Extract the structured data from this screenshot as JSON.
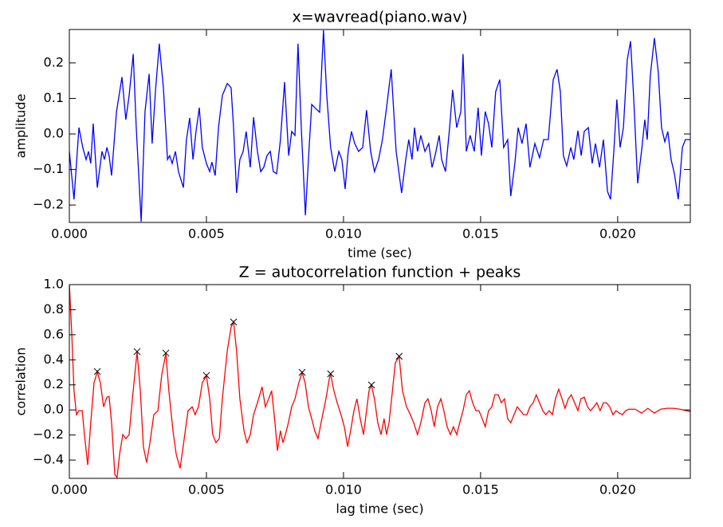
{
  "chart_data": [
    {
      "type": "line",
      "title": "x=wavread(piano.wav)",
      "x_label": "time (sec)",
      "y_label": "amplitude",
      "color": "#0000ff",
      "xlim": [
        0,
        0.02265
      ],
      "ylim": [
        -0.249,
        0.294
      ],
      "xticks": [
        {
          "value": 0,
          "label": "0.000"
        },
        {
          "value": 0.005,
          "label": "0.005"
        },
        {
          "value": 0.01,
          "label": "0.010"
        },
        {
          "value": 0.015,
          "label": "0.015"
        },
        {
          "value": 0.02,
          "label": "0.020"
        }
      ],
      "yticks": [
        {
          "value": -0.2,
          "label": "−0.2"
        },
        {
          "value": -0.1,
          "label": "−0.1"
        },
        {
          "value": 0,
          "label": "0.0"
        },
        0.1,
        0.2
      ],
      "x": [
        0,
        0.00017,
        0.00035,
        0.00049,
        0.00061,
        0.0007,
        0.00078,
        0.00087,
        0.00102,
        0.00119,
        0.00128,
        0.00137,
        0.00145,
        0.00154,
        0.00172,
        0.00192,
        0.00206,
        0.00218,
        0.00233,
        0.00244,
        0.00262,
        0.00276,
        0.00291,
        0.00302,
        0.00314,
        0.00328,
        0.00343,
        0.00358,
        0.00366,
        0.00375,
        0.00387,
        0.00398,
        0.00416,
        0.00427,
        0.00439,
        0.00451,
        0.00462,
        0.00474,
        0.00485,
        0.005,
        0.00512,
        0.0052,
        0.00532,
        0.00544,
        0.00558,
        0.00576,
        0.0059,
        0.00599,
        0.0061,
        0.00622,
        0.00634,
        0.00645,
        0.0066,
        0.00672,
        0.00686,
        0.00698,
        0.00709,
        0.00721,
        0.00733,
        0.00744,
        0.00756,
        0.0077,
        0.00785,
        0.008,
        0.00811,
        0.00823,
        0.00834,
        0.00846,
        0.00861,
        0.00872,
        0.00884,
        0.00898,
        0.00913,
        0.00927,
        0.00939,
        0.00953,
        0.00968,
        0.00983,
        0.00994,
        0.01006,
        0.01017,
        0.01029,
        0.01041,
        0.01055,
        0.0107,
        0.01084,
        0.01099,
        0.01113,
        0.01128,
        0.01142,
        0.01157,
        0.01174,
        0.01192,
        0.01212,
        0.01227,
        0.01238,
        0.0125,
        0.01259,
        0.0127,
        0.01282,
        0.01297,
        0.01311,
        0.01323,
        0.01334,
        0.01349,
        0.01358,
        0.01372,
        0.01387,
        0.01398,
        0.01413,
        0.01428,
        0.01436,
        0.01448,
        0.01462,
        0.01477,
        0.01491,
        0.01503,
        0.01517,
        0.01529,
        0.01541,
        0.01555,
        0.0157,
        0.01584,
        0.01599,
        0.0161,
        0.01625,
        0.01637,
        0.01651,
        0.01666,
        0.0168,
        0.01698,
        0.01715,
        0.0173,
        0.01747,
        0.01765,
        0.01779,
        0.01791,
        0.01802,
        0.01814,
        0.01829,
        0.0184,
        0.01855,
        0.01867,
        0.01878,
        0.01893,
        0.01907,
        0.01919,
        0.01934,
        0.01948,
        0.01963,
        0.01974,
        0.01986,
        0.01997,
        0.02009,
        0.02021,
        0.02035,
        0.02047,
        0.02058,
        0.02073,
        0.02087,
        0.02099,
        0.02108,
        0.02119,
        0.02134,
        0.02148,
        0.0216,
        0.02172,
        0.02183,
        0.02195,
        0.02207,
        0.02221,
        0.02236,
        0.02247,
        0.02265
      ],
      "values": [
        -0.049,
        -0.184,
        0.018,
        -0.038,
        -0.072,
        -0.049,
        -0.083,
        0.029,
        -0.151,
        -0.049,
        -0.072,
        -0.038,
        -0.061,
        -0.117,
        0.063,
        0.16,
        0.04,
        0.108,
        0.225,
        0.018,
        -0.247,
        0.063,
        0.169,
        -0.027,
        0.119,
        0.254,
        0.13,
        -0.072,
        -0.061,
        -0.083,
        -0.049,
        -0.106,
        -0.151,
        -0.016,
        0.045,
        -0.072,
        0.007,
        0.074,
        -0.038,
        -0.083,
        -0.106,
        -0.079,
        -0.117,
        0.018,
        0.108,
        0.142,
        0.13,
        0.018,
        -0.166,
        -0.072,
        -0.049,
        0.007,
        -0.094,
        0.047,
        -0.049,
        -0.106,
        -0.094,
        -0.061,
        -0.049,
        -0.106,
        -0.112,
        -0.016,
        0.146,
        -0.061,
        0.007,
        -0.004,
        0.254,
        0.018,
        -0.229,
        -0.072,
        0.083,
        0.072,
        0.061,
        0.292,
        0.108,
        -0.038,
        -0.106,
        -0.049,
        -0.072,
        -0.155,
        -0.049,
        0.007,
        -0.027,
        -0.049,
        -0.038,
        0.067,
        -0.049,
        -0.106,
        -0.072,
        -0.016,
        0.074,
        0.182,
        -0.049,
        -0.166,
        -0.072,
        -0.016,
        -0.072,
        0.018,
        -0.049,
        -0.004,
        -0.049,
        -0.027,
        -0.094,
        -0.061,
        -0.004,
        -0.072,
        -0.106,
        0.018,
        0.124,
        0.018,
        0.063,
        0.225,
        -0.049,
        -0.004,
        -0.049,
        0.074,
        -0.061,
        0.063,
        0.029,
        -0.038,
        0.119,
        0.153,
        -0.038,
        -0.016,
        -0.175,
        -0.083,
        0.018,
        -0.027,
        0.029,
        -0.094,
        -0.027,
        -0.067,
        -0.016,
        -0.016,
        0.153,
        0.182,
        0.119,
        -0.061,
        -0.09,
        -0.038,
        -0.072,
        0.009,
        -0.061,
        0.007,
        0.018,
        -0.083,
        -0.027,
        -0.094,
        -0.016,
        -0.162,
        -0.184,
        -0.049,
        0.097,
        -0.038,
        0.018,
        0.209,
        0.261,
        0.108,
        -0.139,
        -0.049,
        0.04,
        -0.016,
        0.164,
        0.27,
        0.175,
        0.018,
        -0.022,
        0.007,
        -0.072,
        -0.112,
        -0.184,
        -0.038,
        -0.016,
        -0.016
      ]
    },
    {
      "type": "line",
      "title": "Z = autocorrelation function + peaks",
      "x_label": "lag time (sec)",
      "y_label": "correlation",
      "color": "#ff0000",
      "xlim": [
        0,
        0.02265
      ],
      "ylim": [
        -0.546,
        1.0
      ],
      "xticks": [
        {
          "value": 0,
          "label": "0.000"
        },
        {
          "value": 0.005,
          "label": "0.005"
        },
        {
          "value": 0.01,
          "label": "0.010"
        },
        {
          "value": 0.015,
          "label": "0.015"
        },
        {
          "value": 0.02,
          "label": "0.020"
        }
      ],
      "yticks": [
        {
          "value": -0.4,
          "label": "−0.4"
        },
        {
          "value": -0.2,
          "label": "−0.2"
        },
        {
          "value": 0,
          "label": "0.0"
        },
        0.2,
        0.4,
        0.6,
        0.8,
        {
          "value": 1,
          "label": "1.0"
        }
      ],
      "x": [
        0,
        9e-05,
        0.00017,
        0.00026,
        0.00035,
        0.00047,
        0.00055,
        0.00067,
        0.00078,
        0.0009,
        0.00102,
        0.00113,
        0.00125,
        0.00137,
        0.00145,
        0.00154,
        0.00166,
        0.00174,
        0.00183,
        0.00195,
        0.00206,
        0.00218,
        0.0023,
        0.00247,
        0.00259,
        0.0027,
        0.00282,
        0.00294,
        0.00308,
        0.00323,
        0.00337,
        0.00352,
        0.00363,
        0.00378,
        0.0039,
        0.00404,
        0.00419,
        0.00433,
        0.00448,
        0.00459,
        0.00471,
        0.00485,
        0.005,
        0.00512,
        0.00523,
        0.00535,
        0.00547,
        0.00558,
        0.00576,
        0.0059,
        0.00599,
        0.0061,
        0.00622,
        0.00637,
        0.00648,
        0.0066,
        0.00672,
        0.00686,
        0.00703,
        0.00715,
        0.00727,
        0.00738,
        0.0075,
        0.00759,
        0.0077,
        0.00779,
        0.00788,
        0.00799,
        0.00811,
        0.00823,
        0.00837,
        0.00849,
        0.0086,
        0.00872,
        0.00884,
        0.00895,
        0.00907,
        0.00921,
        0.00936,
        0.00948,
        0.00953,
        0.00965,
        0.00977,
        0.00991,
        0.01003,
        0.01015,
        0.01026,
        0.01038,
        0.01049,
        0.01061,
        0.01073,
        0.01084,
        0.01093,
        0.01102,
        0.01113,
        0.01125,
        0.01137,
        0.01148,
        0.01157,
        0.01166,
        0.01177,
        0.01189,
        0.01203,
        0.01215,
        0.0123,
        0.01244,
        0.01256,
        0.0127,
        0.01282,
        0.01297,
        0.01308,
        0.0132,
        0.01331,
        0.01343,
        0.01355,
        0.01366,
        0.01378,
        0.0139,
        0.01401,
        0.01413,
        0.01424,
        0.01436,
        0.01448,
        0.01459,
        0.01471,
        0.01483,
        0.01494,
        0.01506,
        0.01517,
        0.01529,
        0.01541,
        0.01552,
        0.01564,
        0.01576,
        0.01587,
        0.01599,
        0.0161,
        0.01622,
        0.01634,
        0.01645,
        0.01657,
        0.01669,
        0.0168,
        0.01692,
        0.01703,
        0.01715,
        0.01727,
        0.01738,
        0.0175,
        0.01762,
        0.01773,
        0.01785,
        0.01797,
        0.01808,
        0.0182,
        0.01831,
        0.01843,
        0.01855,
        0.01866,
        0.01878,
        0.0189,
        0.01901,
        0.01913,
        0.01924,
        0.01936,
        0.01948,
        0.01959,
        0.01971,
        0.01983,
        0.01994,
        0.02006,
        0.02017,
        0.02029,
        0.02041,
        0.02064,
        0.02087,
        0.0211,
        0.02134,
        0.02157,
        0.0218,
        0.02203,
        0.02227,
        0.02265
      ],
      "values": [
        1,
        0.599,
        0.153,
        -0.038,
        -0.006,
        -0.006,
        -0.197,
        -0.439,
        -0.102,
        0.217,
        0.306,
        0.217,
        0.025,
        0.102,
        0.108,
        -0.102,
        -0.516,
        -0.54,
        -0.357,
        -0.197,
        -0.229,
        -0.197,
        0.089,
        0.465,
        0.153,
        -0.293,
        -0.42,
        -0.261,
        -0.038,
        -0.006,
        0.28,
        0.452,
        0.153,
        -0.166,
        -0.357,
        -0.465,
        -0.229,
        -0.006,
        0.025,
        -0.038,
        0.025,
        0.217,
        0.274,
        0.089,
        -0.197,
        -0.261,
        -0.229,
        0.089,
        0.471,
        0.662,
        0.701,
        0.471,
        0.089,
        -0.166,
        -0.261,
        -0.197,
        -0.038,
        0.057,
        0.185,
        0.025,
        0.089,
        0.153,
        -0.102,
        -0.325,
        -0.166,
        -0.261,
        -0.197,
        -0.102,
        0.025,
        0.089,
        0.217,
        0.299,
        0.217,
        0.025,
        -0.07,
        -0.166,
        -0.229,
        -0.07,
        0.089,
        0.248,
        0.287,
        0.153,
        0.057,
        -0.038,
        -0.134,
        -0.293,
        -0.166,
        -0.006,
        0.089,
        -0.07,
        -0.197,
        -0.006,
        0.153,
        0.197,
        0.089,
        -0.102,
        -0.197,
        -0.07,
        -0.197,
        -0.102,
        0.121,
        0.376,
        0.427,
        0.153,
        0.025,
        -0.038,
        -0.102,
        -0.197,
        -0.102,
        0.057,
        0.089,
        -0.006,
        -0.134,
        0.025,
        0.089,
        -0.006,
        -0.134,
        -0.197,
        -0.134,
        -0.197,
        -0.102,
        -0.006,
        0.121,
        0.153,
        0.057,
        -0.006,
        -0.006,
        -0.07,
        -0.134,
        -0.006,
        0.025,
        0.121,
        0.121,
        0.057,
        0.089,
        -0.07,
        -0.102,
        -0.038,
        0.025,
        -0.006,
        -0.038,
        -0.038,
        0.025,
        0.057,
        0.121,
        0.057,
        -0.006,
        -0.038,
        -0.006,
        -0.038,
        0.089,
        0.166,
        0.089,
        0.013,
        0.089,
        0.121,
        0.057,
        -0.006,
        0.089,
        0.102,
        0.025,
        -0.006,
        0.025,
        0.057,
        -0.006,
        0.057,
        0.057,
        0.025,
        -0.038,
        -0.006,
        -0.025,
        -0.038,
        -0.006,
        0.006,
        0.006,
        -0.025,
        0.013,
        -0.025,
        0.006,
        0.013,
        0.013,
        0.006,
        -0.013
      ],
      "peaks": {
        "color": "#000000",
        "marker": "x",
        "x": [
          0.00102,
          0.00247,
          0.00352,
          0.005,
          0.00599,
          0.00849,
          0.00953,
          0.01102,
          0.01203
        ],
        "values": [
          0.307,
          0.466,
          0.454,
          0.275,
          0.702,
          0.3,
          0.288,
          0.199,
          0.428
        ]
      }
    }
  ]
}
